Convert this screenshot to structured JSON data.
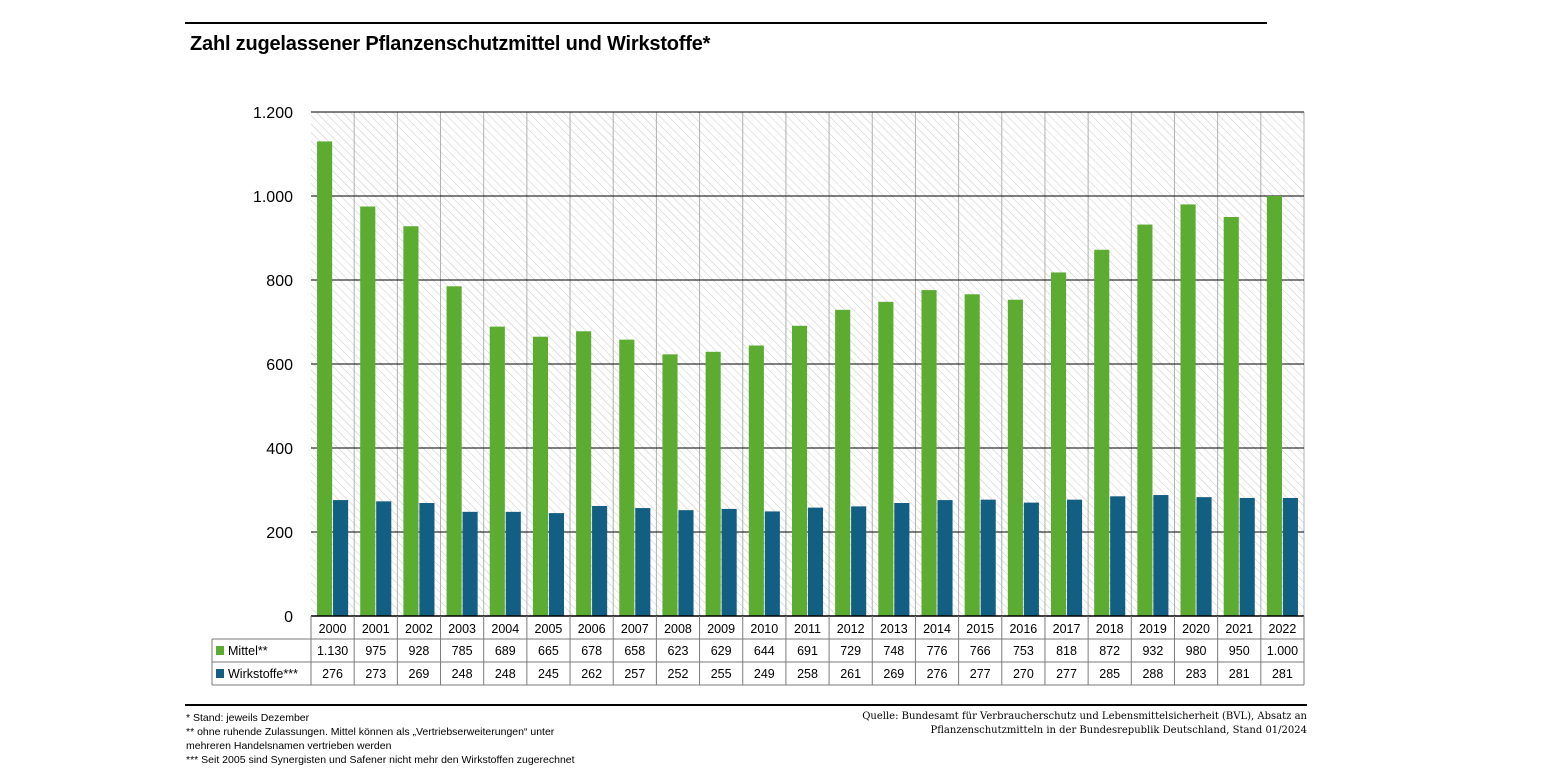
{
  "title": "Zahl zugelassener Pflanzenschutzmittel und Wirkstoffe*",
  "colors": {
    "mittel": "#5dac32",
    "wirkstoffe": "#135e83",
    "grid": "#000000",
    "hatch": "#c8c8c8"
  },
  "chart_data": {
    "type": "bar",
    "title": "Zahl zugelassener Pflanzenschutzmittel und Wirkstoffe*",
    "categories": [
      "2000",
      "2001",
      "2002",
      "2003",
      "2004",
      "2005",
      "2006",
      "2007",
      "2008",
      "2009",
      "2010",
      "2011",
      "2012",
      "2013",
      "2014",
      "2015",
      "2016",
      "2017",
      "2018",
      "2019",
      "2020",
      "2021",
      "2022"
    ],
    "series": [
      {
        "name": "Mittel**",
        "color": "#5dac32",
        "values": [
          1130,
          975,
          928,
          785,
          689,
          665,
          678,
          658,
          623,
          629,
          644,
          691,
          729,
          748,
          776,
          766,
          753,
          818,
          872,
          932,
          980,
          950,
          1000
        ],
        "labels": [
          "1.130",
          "975",
          "928",
          "785",
          "689",
          "665",
          "678",
          "658",
          "623",
          "629",
          "644",
          "691",
          "729",
          "748",
          "776",
          "766",
          "753",
          "818",
          "872",
          "932",
          "980",
          "950",
          "1.000"
        ]
      },
      {
        "name": "Wirkstoffe***",
        "color": "#135e83",
        "values": [
          276,
          273,
          269,
          248,
          248,
          245,
          262,
          257,
          252,
          255,
          249,
          258,
          261,
          269,
          276,
          277,
          270,
          277,
          285,
          288,
          283,
          281,
          281
        ],
        "labels": [
          "276",
          "273",
          "269",
          "248",
          "248",
          "245",
          "262",
          "257",
          "252",
          "255",
          "249",
          "258",
          "261",
          "269",
          "276",
          "277",
          "270",
          "277",
          "285",
          "288",
          "283",
          "281",
          "281"
        ]
      }
    ],
    "ylim": [
      0,
      1200
    ],
    "yticks": [
      0,
      200,
      400,
      600,
      800,
      1000,
      1200
    ],
    "ytick_labels": [
      "0",
      "200",
      "400",
      "600",
      "800",
      "1.000",
      "1.200"
    ],
    "grid": true,
    "legend": "table-below"
  },
  "footnotes": [
    "* Stand: jeweils Dezember",
    "** ohne ruhende Zulassungen. Mittel können als „Vertriebserweiterungen“ unter",
    "mehreren Handelsnamen vertrieben werden",
    "*** Seit 2005 sind Synergisten und Safener nicht mehr den Wirkstoffen zugerechnet"
  ],
  "source": [
    "Quelle: Bundesamt für Verbraucherschutz und Lebensmittelsicherheit (BVL), Absatz an",
    "Pflanzenschutzmitteln in der Bundesrepublik Deutschland, Stand 01/2024"
  ]
}
